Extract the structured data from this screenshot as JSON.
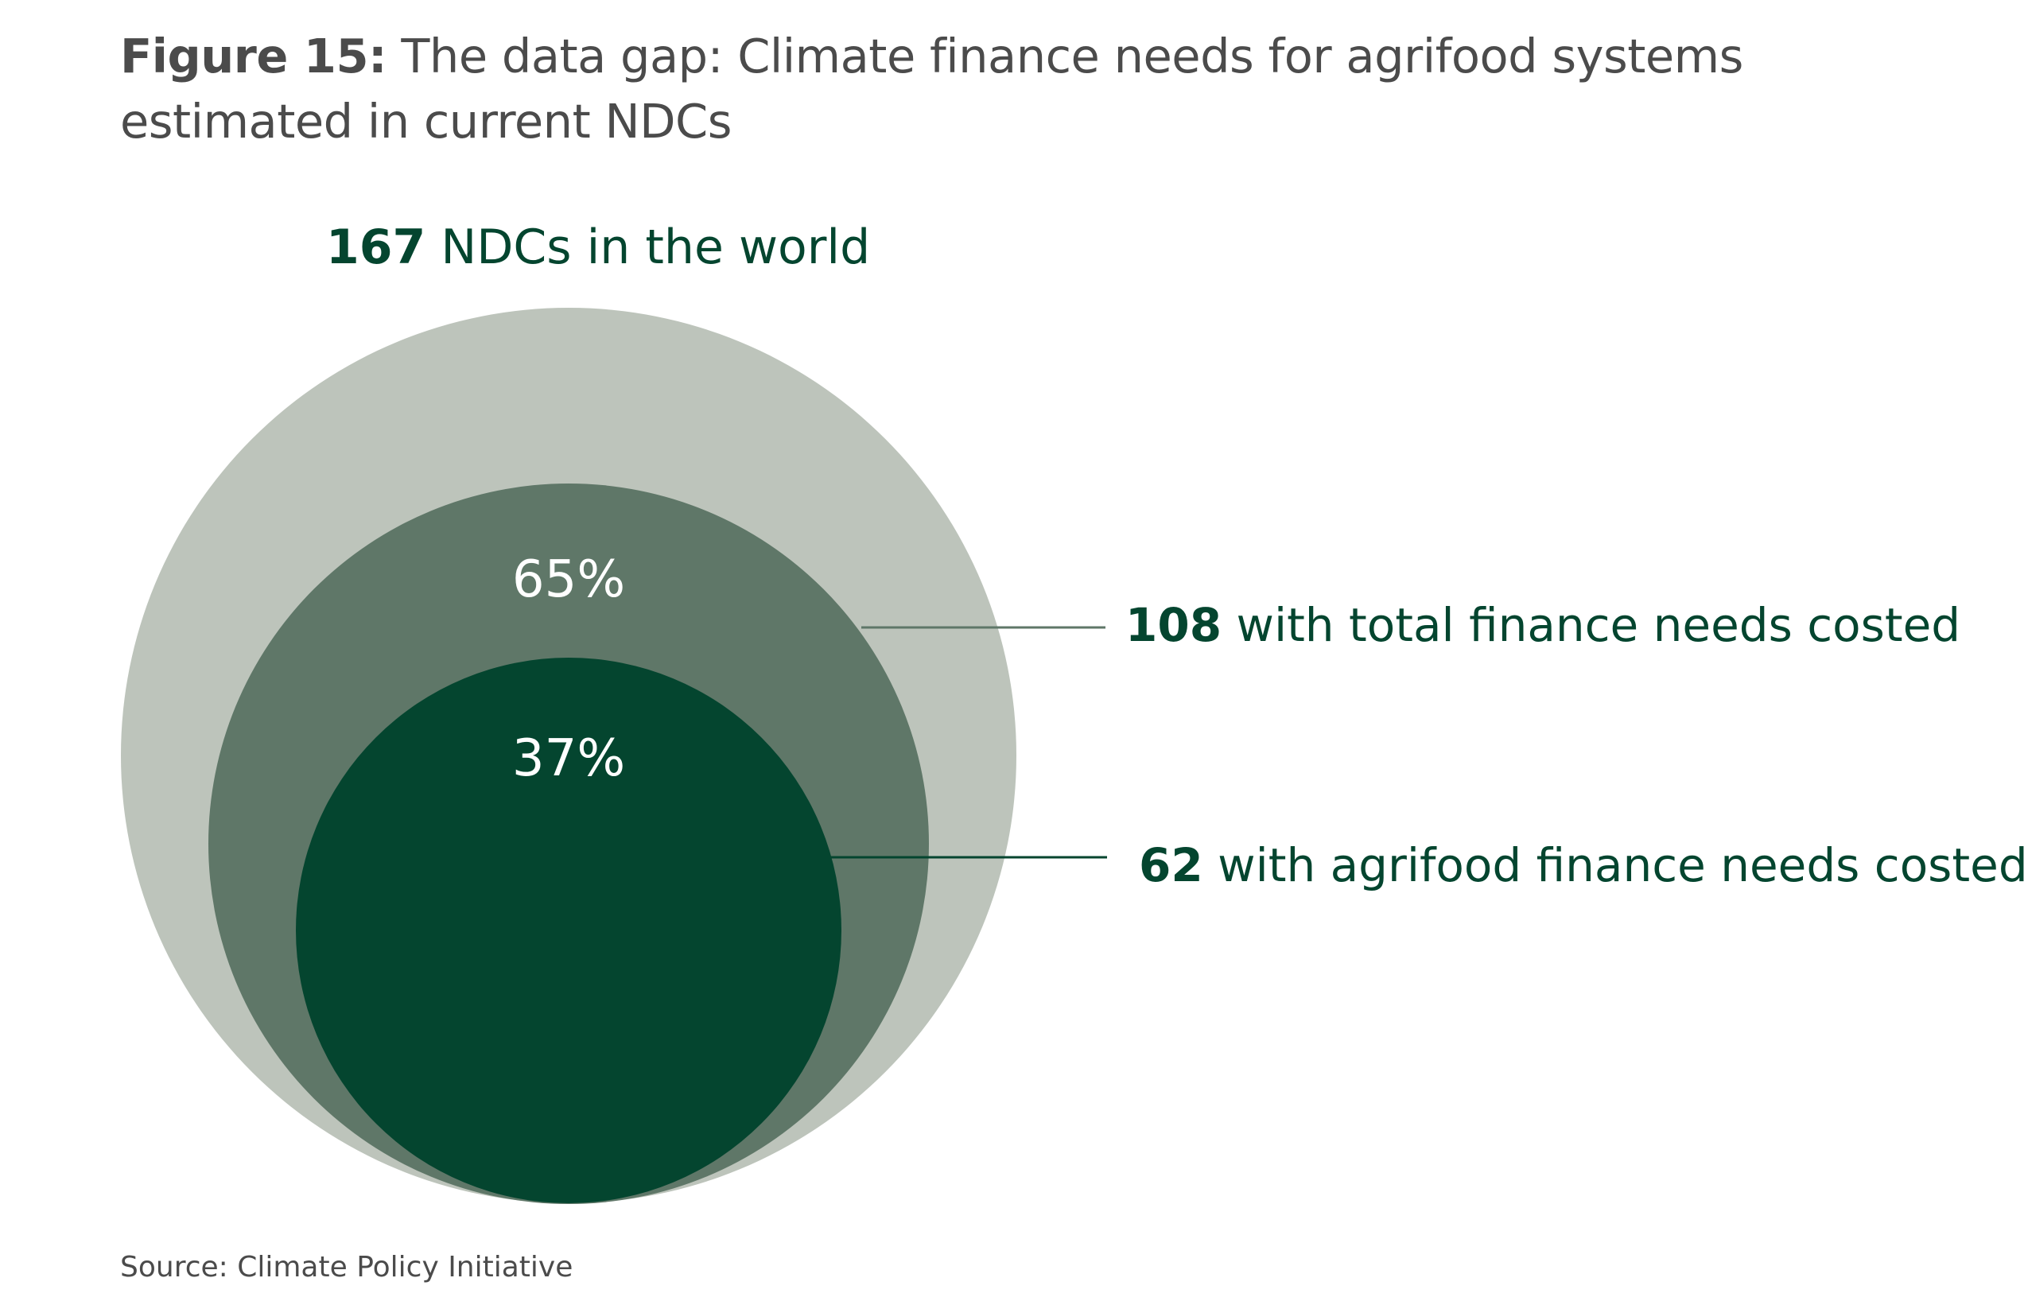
{
  "title": {
    "label": "Figure 15:",
    "text": " The data gap: Climate finance needs for agrifood systems estimated in current NDCs"
  },
  "source": "Source: Climate Policy Initiative",
  "colors": {
    "outer": "#bdc4bb",
    "middle": "#5f7768",
    "inner": "#04452f",
    "text_dark": "#04452f",
    "text_light": "#ffffff",
    "title": "#4b4b4b"
  },
  "chart_data": {
    "type": "nested-circles",
    "levels": [
      {
        "count": "167",
        "label": "NDCs in the world",
        "share_pct": ""
      },
      {
        "count": "108",
        "label": "with total finance needs costed",
        "share_pct": "65%"
      },
      {
        "count": "62",
        "label": "with agrifood finance needs costed",
        "share_pct": "37%"
      }
    ]
  }
}
